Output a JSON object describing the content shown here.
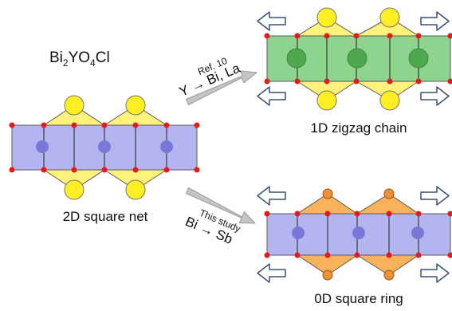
{
  "formula": {
    "base": "Bi",
    "sub1": "2",
    "mid": "YO",
    "sub2": "4",
    "end": "Cl"
  },
  "labels": {
    "net": "2D square net",
    "chain": "1D zigzag chain",
    "ring": "0D square ring"
  },
  "arrows": {
    "upper": {
      "reference": "Ref. 10",
      "substitution": "Y → Bi, La"
    },
    "lower": {
      "reference": "This study",
      "substitution": "Bi → Sb"
    }
  },
  "colors": {
    "polyhedron_purple": "#b4b4f0",
    "center_purple": "#7878d8",
    "polyhedron_green": "#8ed48e",
    "center_green": "#4ea84e",
    "pyramid_yellow": "#fff27a",
    "sphere_yellow": "#ffee22",
    "pyramid_orange": "#f7b25a",
    "sphere_orange": "#f29030",
    "oxygen_red": "#e31b1b",
    "transfer_arrow": "#c4c4c4"
  },
  "icons": {
    "expansion_arrow": "open-arrow-outline",
    "transfer_arrow": "thick-gray-arrow"
  }
}
